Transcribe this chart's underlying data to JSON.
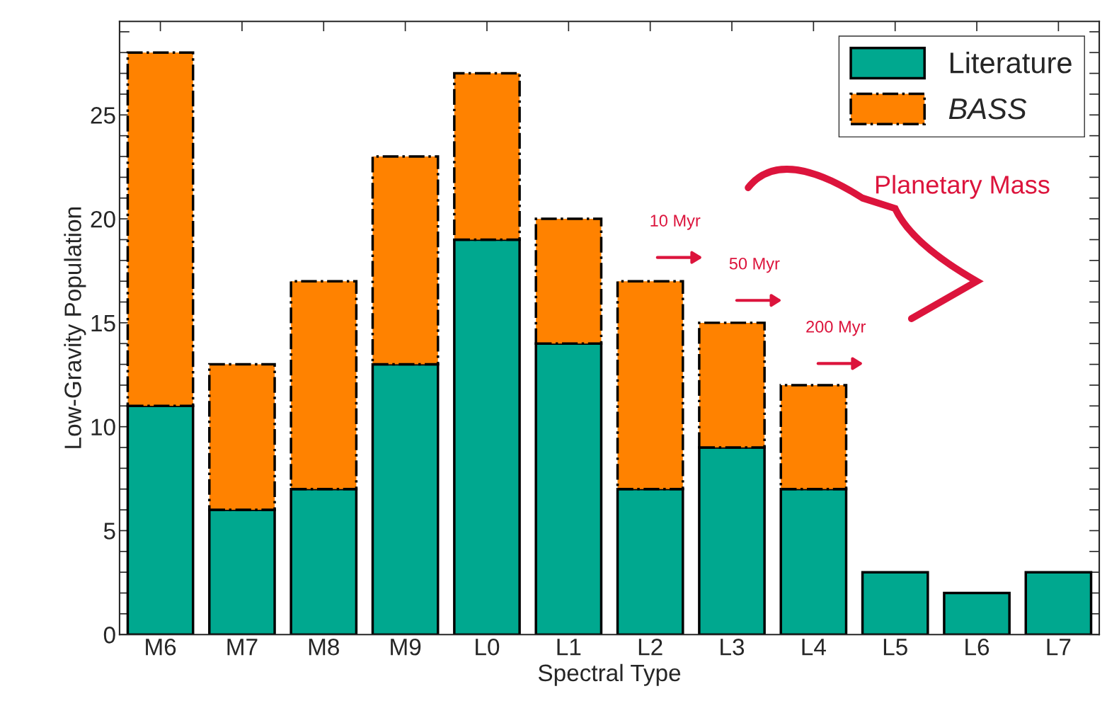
{
  "chart_data": {
    "type": "bar",
    "stacked": true,
    "xlabel": "Spectral Type",
    "ylabel": "Low-Gravity Population",
    "categories": [
      "M6",
      "M7",
      "M8",
      "M9",
      "L0",
      "L1",
      "L2",
      "L3",
      "L4",
      "L5",
      "L6",
      "L7"
    ],
    "series": [
      {
        "name": "Literature",
        "color": "#00a88f",
        "line_style": "solid",
        "values": [
          11,
          6,
          7,
          13,
          19,
          14,
          7,
          9,
          7,
          3,
          2,
          3
        ]
      },
      {
        "name": "BASS",
        "color": "#ff8200",
        "line_style": "dashdot",
        "values": [
          17,
          7,
          10,
          10,
          8,
          6,
          10,
          6,
          5,
          null,
          null,
          null
        ]
      }
    ],
    "ylim": [
      0,
      29.5
    ],
    "yticks": [
      0,
      {
        "value": 1,
        "label": null
      },
      {
        "value": 2,
        "label": null
      },
      {
        "value": 3,
        "label": null
      },
      {
        "value": 4,
        "label": null
      },
      5,
      {
        "value": 6,
        "label": null
      },
      {
        "value": 7,
        "label": null
      },
      {
        "value": 8,
        "label": null
      },
      {
        "value": 9,
        "label": null
      },
      10,
      {
        "value": 11,
        "label": null
      },
      {
        "value": 12,
        "label": null
      },
      {
        "value": 13,
        "label": null
      },
      {
        "value": 14,
        "label": null
      },
      15,
      {
        "value": 16,
        "label": null
      },
      {
        "value": 17,
        "label": null
      },
      {
        "value": 18,
        "label": null
      },
      {
        "value": 19,
        "label": null
      },
      20,
      {
        "value": 21,
        "label": null
      },
      {
        "value": 22,
        "label": null
      },
      {
        "value": 23,
        "label": null
      },
      {
        "value": 24,
        "label": null
      },
      25,
      {
        "value": 26,
        "label": null
      },
      {
        "value": 27,
        "label": null
      },
      {
        "value": 28,
        "label": null
      },
      {
        "value": 29,
        "label": null
      }
    ],
    "grid": false,
    "legend": "top right",
    "annotations": [
      "Planetary Mass",
      "10 Myr",
      "50 Myr",
      "200 Myr"
    ]
  }
}
